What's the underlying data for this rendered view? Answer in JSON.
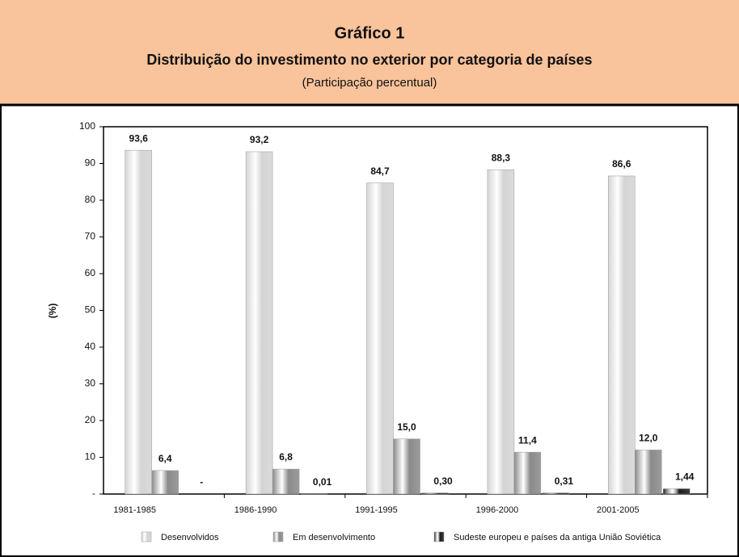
{
  "chart_data": {
    "type": "bar",
    "title": "Gráfico 1",
    "subtitle": "Distribuição do investimento no exterior por categoria de países",
    "note": "(Participação percentual)",
    "y_label": "(%)",
    "categories": [
      "1981-1985",
      "1986-1990",
      "1991-1995",
      "1996-2000",
      "2001-2005"
    ],
    "series": [
      {
        "name": "Desenvolvidos",
        "color": "#d4d4d4",
        "values": [
          93.6,
          93.2,
          84.7,
          88.3,
          86.6
        ],
        "value_labels": [
          "93,6",
          "93,2",
          "84,7",
          "88,3",
          "86,6"
        ]
      },
      {
        "name": "Em desenvolvimento",
        "color": "#8a8a8a",
        "values": [
          6.4,
          6.8,
          15.0,
          11.4,
          12.0
        ],
        "value_labels": [
          "6,4",
          "6,8",
          "15,0",
          "11,4",
          "12,0"
        ]
      },
      {
        "name": "Sudeste europeu e países da antiga União Soviética",
        "color": "#1c1c1c",
        "values": [
          null,
          0.01,
          0.3,
          0.31,
          1.44
        ],
        "value_labels": [
          "-",
          "0,01",
          "0,30",
          "0,31",
          "1,44"
        ]
      }
    ],
    "ylim": [
      0,
      100
    ],
    "yticks": [
      {
        "value": 0,
        "label": "-"
      },
      10,
      20,
      30,
      40,
      50,
      60,
      70,
      80,
      90,
      100
    ],
    "grid": false
  }
}
